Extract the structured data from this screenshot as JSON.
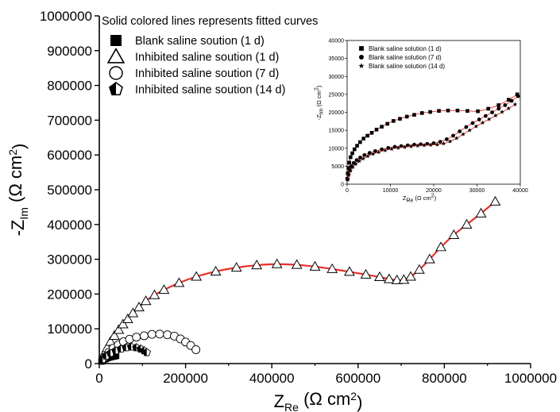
{
  "chart_data": [
    {
      "type": "scatter",
      "title": "",
      "xlabel": "Z",
      "xlabel_sub": "Re",
      "xlabel_unit": " (Ω cm",
      "ylabel": "-Z",
      "ylabel_sub": "Im",
      "ylabel_unit": " (Ω cm",
      "unit_sup": "2",
      "unit_close": ")",
      "xlim": [
        0,
        1000000
      ],
      "ylim": [
        0,
        1000000
      ],
      "xticks": [
        "0",
        "200000",
        "400000",
        "600000",
        "800000",
        "1000000"
      ],
      "yticks": [
        "0",
        "100000",
        "200000",
        "300000",
        "400000",
        "500000",
        "600000",
        "700000",
        "800000",
        "900000",
        "1000000"
      ],
      "legend_position": "top-left",
      "legend_title": "Solid colored lines represents fitted curves",
      "series": [
        {
          "name": "Blank saline soution (1 d)",
          "marker": "filled-square",
          "fit_color": "#e8312b",
          "x": [
            5000,
            10000,
            15000,
            20000,
            25000,
            30000,
            34000,
            37000,
            39000
          ],
          "y": [
            6000,
            10000,
            13000,
            16000,
            18000,
            19500,
            20500,
            21500,
            22500
          ]
        },
        {
          "name": "Inhibited saline soution (1 d)",
          "marker": "open-triangle",
          "fit_color": "#e8312b",
          "x": [
            10000,
            18000,
            26000,
            35000,
            45000,
            55000,
            66000,
            78000,
            92000,
            108000,
            128000,
            150000,
            185000,
            225000,
            270000,
            318000,
            365000,
            412000,
            458000,
            500000,
            540000,
            580000,
            618000,
            650000,
            672000,
            690000,
            706000,
            722000,
            742000,
            766000,
            792000,
            822000,
            852000,
            885000,
            918000
          ],
          "y": [
            25000,
            45000,
            63000,
            80000,
            97000,
            113000,
            128000,
            145000,
            162000,
            180000,
            197000,
            212000,
            232000,
            250000,
            265000,
            276000,
            283000,
            286000,
            284000,
            279000,
            272000,
            264000,
            256000,
            249000,
            243000,
            240000,
            241000,
            250000,
            270000,
            300000,
            335000,
            370000,
            400000,
            432000,
            466000
          ]
        },
        {
          "name": "Inhibited saline soution (7 d)",
          "marker": "open-circle",
          "fit_color": "#1f2f9a",
          "x": [
            12000,
            22000,
            32000,
            44000,
            56000,
            70000,
            86000,
            104000,
            122000,
            140000,
            158000,
            174000,
            188000,
            200000,
            212000,
            224000
          ],
          "y": [
            18000,
            32000,
            44000,
            54000,
            63000,
            70000,
            76000,
            80000,
            84000,
            85000,
            83000,
            79000,
            71000,
            62000,
            52000,
            40000
          ]
        },
        {
          "name": "Inhibited saline soution (14 d)",
          "marker": "half-filled-pentagon",
          "fit_color": "#1b7a3a",
          "x": [
            8000,
            16000,
            26000,
            38000,
            50000,
            62000,
            74000,
            86000,
            96000,
            104000,
            110000
          ],
          "y": [
            12000,
            22000,
            30000,
            37000,
            42000,
            46000,
            48000,
            46000,
            42000,
            37000,
            32000
          ]
        }
      ]
    },
    {
      "type": "scatter",
      "title": "",
      "xlabel": "Z",
      "xlabel_sub": "Re",
      "xlabel_unit": " (Ω cm",
      "ylabel": "-Z",
      "ylabel_sub": "Im",
      "ylabel_unit": " (Ω cm",
      "unit_sup": "2",
      "unit_close": ")",
      "xlim": [
        0,
        40000
      ],
      "ylim": [
        0,
        40000
      ],
      "xticks": [
        "0",
        "10000",
        "20000",
        "30000",
        "40000"
      ],
      "yticks": [
        "0",
        "5000",
        "10000",
        "15000",
        "20000",
        "25000",
        "30000",
        "35000",
        "40000"
      ],
      "legend_position": "top-left",
      "series": [
        {
          "name": "Blank saline solution (1 d)",
          "marker": "filled-square",
          "fit_color": "#e8312b",
          "x": [
            50,
            150,
            300,
            500,
            800,
            1200,
            1700,
            2300,
            3000,
            3800,
            4700,
            5700,
            6800,
            8000,
            9300,
            10700,
            12200,
            13800,
            15500,
            17300,
            19200,
            21200,
            23300,
            25500,
            27800,
            30200,
            32600,
            35000,
            37300,
            39300
          ],
          "y": [
            1500,
            3000,
            4500,
            6000,
            7500,
            8600,
            9700,
            10700,
            11700,
            12700,
            13500,
            14300,
            15200,
            16000,
            16800,
            17600,
            18200,
            18800,
            19300,
            19800,
            20100,
            20400,
            20500,
            20500,
            20400,
            20300,
            21000,
            22000,
            23500,
            25000
          ]
        },
        {
          "name": "Blank saline solution (7 d)",
          "marker": "filled-circle",
          "fit_color": "#e8312b",
          "x": [
            100,
            300,
            600,
            1000,
            1500,
            2200,
            3000,
            4000,
            5200,
            6500,
            8000,
            9500,
            11000,
            12500,
            14000,
            15500,
            17000,
            18500,
            20000,
            21500,
            23000,
            24500,
            26000,
            27500,
            29000,
            30500,
            32000,
            33500,
            35000,
            36500,
            38000,
            39500
          ],
          "y": [
            1500,
            2800,
            4000,
            5000,
            5900,
            6700,
            7400,
            8100,
            8700,
            9200,
            9700,
            10100,
            10400,
            10600,
            10800,
            11000,
            11100,
            11200,
            11400,
            11800,
            12500,
            13500,
            14700,
            15900,
            17000,
            18000,
            19000,
            20000,
            21000,
            22000,
            23200,
            24500
          ]
        },
        {
          "name": "Blank saline solution (14 d)",
          "marker": "filled-star",
          "fit_color": "#e8312b",
          "x": [
            150,
            400,
            800,
            1300,
            2000,
            2800,
            3700,
            4800,
            6000,
            7300,
            8800,
            10300,
            11800,
            13300,
            14800,
            16300,
            17800,
            19300,
            20800,
            22300,
            23800,
            25300,
            26800,
            28300,
            29800,
            31300,
            32800,
            34300,
            35800,
            37300,
            38800
          ],
          "y": [
            1200,
            2500,
            3700,
            4700,
            5600,
            6400,
            7100,
            7800,
            8400,
            8900,
            9400,
            9800,
            10100,
            10300,
            10500,
            10700,
            10800,
            10900,
            11000,
            11300,
            11900,
            12800,
            13900,
            15000,
            16100,
            17100,
            18100,
            19100,
            20100,
            21100,
            22200
          ]
        }
      ]
    }
  ]
}
